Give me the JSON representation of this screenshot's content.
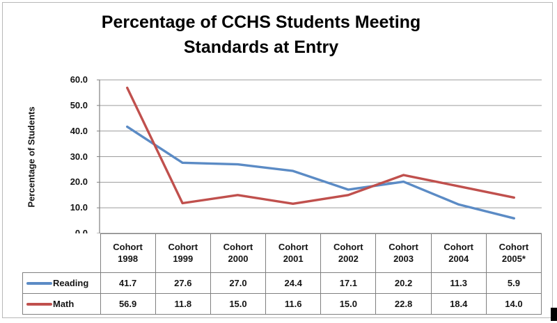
{
  "chart_data": {
    "type": "line",
    "title": "Percentage of CCHS Students Meeting Standards at Entry",
    "ylabel": "Percentage of Students",
    "categories": [
      "Cohort 1998",
      "Cohort 1999",
      "Cohort 2000",
      "Cohort 2001",
      "Cohort 2002",
      "Cohort 2003",
      "Cohort 2004",
      "Cohort 2005*"
    ],
    "series": [
      {
        "name": "Reading",
        "color": "#5B8BC5",
        "values": [
          41.7,
          27.6,
          27.0,
          24.4,
          17.1,
          20.2,
          11.3,
          5.9
        ]
      },
      {
        "name": "Math",
        "color": "#C0504D",
        "values": [
          56.9,
          11.8,
          15.0,
          11.6,
          15.0,
          22.8,
          18.4,
          14.0
        ]
      }
    ],
    "ylim": [
      0,
      60
    ],
    "y_tick_step": 10,
    "y_ticks": [
      "60.0",
      "50.0",
      "40.0",
      "30.0",
      "20.0",
      "10.0",
      "0.0"
    ],
    "grid": "horizontal",
    "legend_position": "table-first-column",
    "colors": {
      "gridline": "#9b9b9b",
      "axis": "#808080",
      "table_border": "#7f7f7f",
      "text": "#141414",
      "title": "#000000",
      "frame": "#b8b8b8",
      "corner_mark": "#000000",
      "background": "#ffffff"
    }
  }
}
